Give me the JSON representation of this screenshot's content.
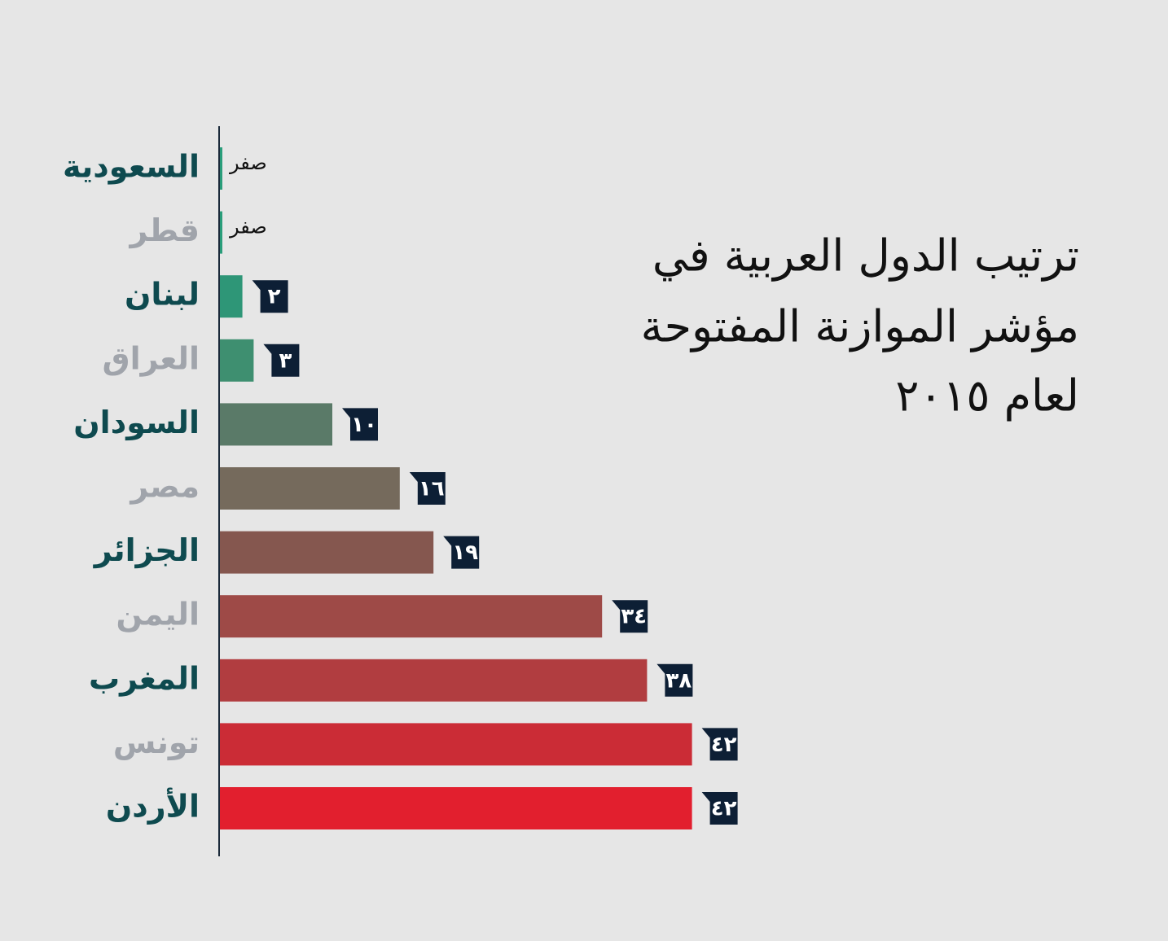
{
  "chart_data": {
    "type": "hbar",
    "title": [
      "ترتيب الدول العربية في",
      "مؤشر الموازنة المفتوحة",
      "لعام ٢٠١٥"
    ],
    "categories": [
      "السعودية",
      "قطر",
      "لبنان",
      "العراق",
      "السودان",
      "مصر",
      "الجزائر",
      "اليمن",
      "المغرب",
      "تونس",
      "الأردن"
    ],
    "values": [
      0,
      0,
      2,
      3,
      10,
      16,
      19,
      34,
      38,
      42,
      42
    ],
    "value_labels": [
      "صفر",
      "صفر",
      "٢",
      "٣",
      "١٠",
      "١٦",
      "١٩",
      "٣٤",
      "٣٨",
      "٤٢",
      "٤٢"
    ],
    "colors": [
      "#2a9d7a",
      "#2a9d7a",
      "#2e9677",
      "#3e8f70",
      "#5a7a68",
      "#756a5c",
      "#85574f",
      "#9e4a47",
      "#b13d40",
      "#cb2c36",
      "#e21f2e"
    ],
    "xlim": [
      0,
      60
    ]
  }
}
